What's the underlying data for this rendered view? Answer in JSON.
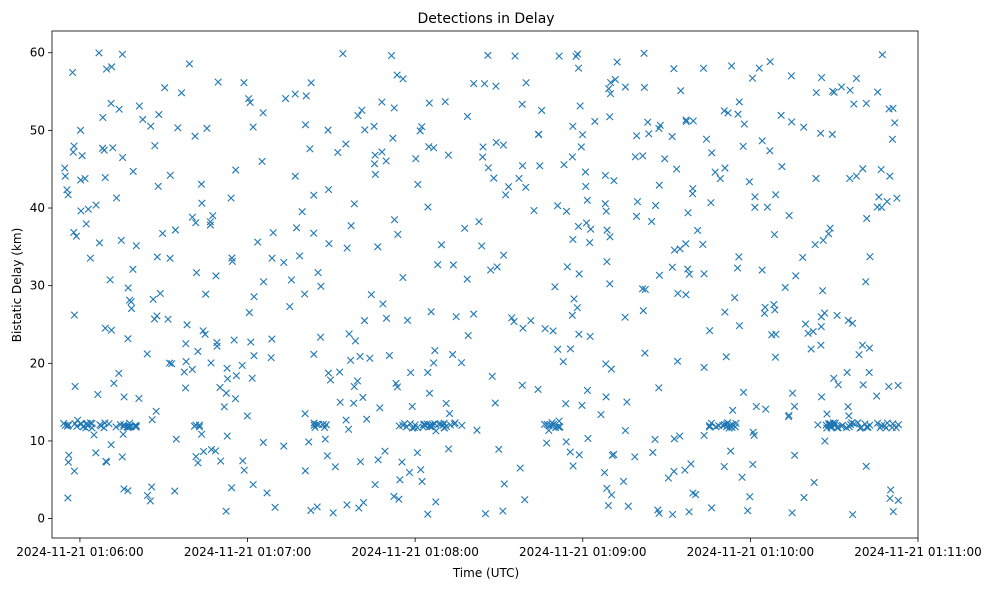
{
  "chart_data": {
    "type": "scatter",
    "title": "Detections in Delay",
    "xlabel": "Time (UTC)",
    "ylabel": "Bistatic Delay (km)",
    "marker": "x",
    "color": "#1f77b4",
    "xlim_seconds": [
      -10,
      300
    ],
    "ylim": [
      -2.5,
      62.8
    ],
    "x_ticks": [
      {
        "value": 0,
        "label": "2024-11-21 01:06:00"
      },
      {
        "value": 60,
        "label": "2024-11-21 01:07:00"
      },
      {
        "value": 120,
        "label": "2024-11-21 01:08:00"
      },
      {
        "value": 180,
        "label": "2024-11-21 01:09:00"
      },
      {
        "value": 240,
        "label": "2024-11-21 01:10:00"
      },
      {
        "value": 300,
        "label": "2024-11-21 01:11:00"
      }
    ],
    "y_ticks": [
      {
        "value": 0,
        "label": "0"
      },
      {
        "value": 10,
        "label": "10"
      },
      {
        "value": 20,
        "label": "20"
      },
      {
        "value": 30,
        "label": "30"
      },
      {
        "value": 40,
        "label": "40"
      },
      {
        "value": 50,
        "label": "50"
      },
      {
        "value": 60,
        "label": "60"
      }
    ],
    "x_unit": "seconds after 2024-11-21 01:06:00 UTC",
    "x_range_seconds": [
      -6,
      293
    ],
    "y_range": [
      0.5,
      60
    ],
    "band_y": 12,
    "band_intervals": [
      [
        -6,
        22
      ],
      [
        40,
        43
      ],
      [
        83,
        89
      ],
      [
        115,
        137
      ],
      [
        165,
        172
      ],
      [
        223,
        235
      ],
      [
        263,
        293
      ]
    ],
    "n_scatter": 620,
    "n_band": 140
  }
}
